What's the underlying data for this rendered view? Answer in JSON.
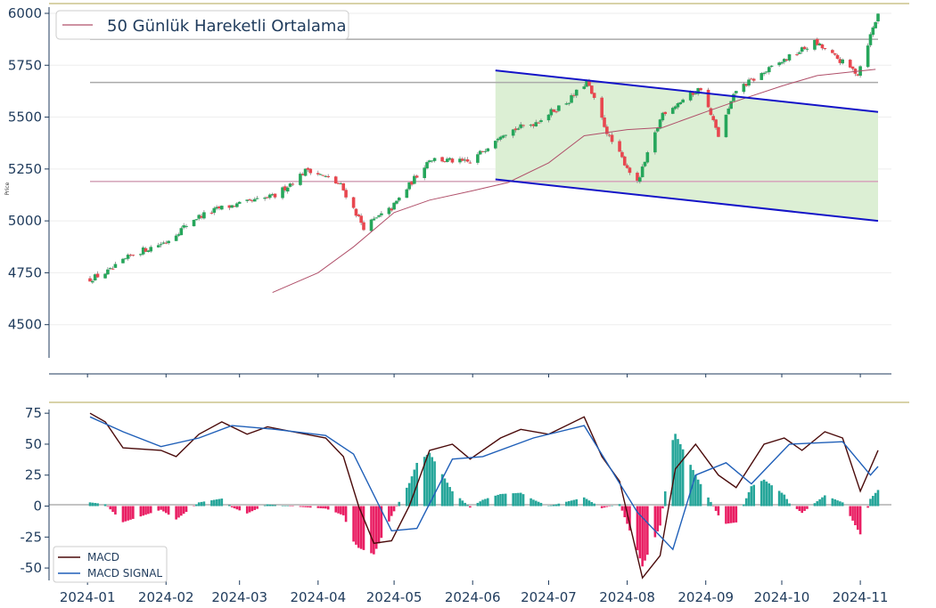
{
  "chart_data": [
    {
      "type": "candlestick",
      "ylabel": "Price",
      "ylim": [
        4340,
        6030
      ],
      "yticks": [
        4500,
        4750,
        5000,
        5250,
        5500,
        5750,
        6000
      ],
      "legend": {
        "placement": "top-left",
        "entries": [
          {
            "label": "50 Günlük Hareketli Ortalama",
            "color": "#b0506a"
          }
        ]
      },
      "up_color": "#26a65b",
      "down_color": "#e8474f",
      "moving_average": {
        "name": "50 Günlük Hareketli Ortalama",
        "color": "#b0506a",
        "points": [
          [
            "2024-03-14",
            4655
          ],
          [
            "2024-04-01",
            4750
          ],
          [
            "2024-04-15",
            4875
          ],
          [
            "2024-05-01",
            5040
          ],
          [
            "2024-05-15",
            5100
          ],
          [
            "2024-06-01",
            5145
          ],
          [
            "2024-06-15",
            5185
          ],
          [
            "2024-07-01",
            5280
          ],
          [
            "2024-07-15",
            5410
          ],
          [
            "2024-08-01",
            5440
          ],
          [
            "2024-08-15",
            5450
          ],
          [
            "2024-09-01",
            5525
          ],
          [
            "2024-09-15",
            5585
          ],
          [
            "2024-10-01",
            5650
          ],
          [
            "2024-10-15",
            5700
          ],
          [
            "2024-11-07",
            5730
          ]
        ]
      },
      "horizontal_levels": [
        {
          "value": 5875,
          "color": "#aaaaaa",
          "from": "2024-01-02",
          "to": "2024-11-08"
        },
        {
          "value": 5667,
          "color": "#aaaaaa",
          "from": "2024-01-02",
          "to": "2024-11-08"
        },
        {
          "value": 5190,
          "color": "#d7a9bd",
          "from": "2024-01-02",
          "to": "2024-11-08"
        }
      ],
      "channel": {
        "color": "#1414c8",
        "fill": "#dcefd4",
        "upper": [
          [
            "2024-06-10",
            5725
          ],
          [
            "2024-11-08",
            5525
          ]
        ],
        "lower": [
          [
            "2024-06-10",
            5200
          ],
          [
            "2024-11-08",
            5000
          ]
        ]
      },
      "anchors": [
        [
          "2024-01-02",
          4720
        ],
        [
          "2024-01-10",
          4760
        ],
        [
          "2024-01-19",
          4840
        ],
        [
          "2024-02-01",
          4900
        ],
        [
          "2024-02-12",
          5010
        ],
        [
          "2024-02-22",
          5060
        ],
        [
          "2024-03-05",
          5090
        ],
        [
          "2024-03-15",
          5120
        ],
        [
          "2024-03-28",
          5250
        ],
        [
          "2024-04-04",
          5210
        ],
        [
          "2024-04-10",
          5170
        ],
        [
          "2024-04-19",
          4970
        ],
        [
          "2024-04-30",
          5060
        ],
        [
          "2024-05-15",
          5300
        ],
        [
          "2024-05-31",
          5280
        ],
        [
          "2024-06-12",
          5420
        ],
        [
          "2024-06-25",
          5470
        ],
        [
          "2024-07-09",
          5580
        ],
        [
          "2024-07-16",
          5670
        ],
        [
          "2024-07-25",
          5400
        ],
        [
          "2024-08-05",
          5180
        ],
        [
          "2024-08-15",
          5520
        ],
        [
          "2024-08-30",
          5640
        ],
        [
          "2024-09-06",
          5410
        ],
        [
          "2024-09-13",
          5630
        ],
        [
          "2024-09-30",
          5760
        ],
        [
          "2024-10-14",
          5860
        ],
        [
          "2024-10-31",
          5710
        ],
        [
          "2024-11-06",
          5930
        ],
        [
          "2024-11-08",
          5995
        ]
      ]
    },
    {
      "type": "macd",
      "ylim": [
        -60,
        78
      ],
      "yticks": [
        -50,
        -25,
        0,
        25,
        50,
        75
      ],
      "xticks": [
        "2024-01",
        "2024-02",
        "2024-03",
        "2024-04",
        "2024-05",
        "2024-06",
        "2024-07",
        "2024-08",
        "2024-09",
        "2024-10",
        "2024-11"
      ],
      "legend": {
        "placement": "bottom-left",
        "entries": [
          {
            "label": "MACD",
            "color": "#4a0a0a"
          },
          {
            "label": "MACD SIGNAL",
            "color": "#1f5fb8"
          }
        ]
      },
      "macd_color": "#4a0a0a",
      "signal_color": "#1f5fb8",
      "hist_pos_color": "#26a69a",
      "hist_neg_color": "#e91e63",
      "macd": [
        [
          "2024-01-02",
          75
        ],
        [
          "2024-01-08",
          68
        ],
        [
          "2024-01-15",
          47
        ],
        [
          "2024-01-30",
          45
        ],
        [
          "2024-02-05",
          40
        ],
        [
          "2024-02-14",
          58
        ],
        [
          "2024-02-23",
          68
        ],
        [
          "2024-03-04",
          58
        ],
        [
          "2024-03-12",
          64
        ],
        [
          "2024-03-22",
          60
        ],
        [
          "2024-04-04",
          55
        ],
        [
          "2024-04-11",
          40
        ],
        [
          "2024-04-17",
          0
        ],
        [
          "2024-04-23",
          -30
        ],
        [
          "2024-04-30",
          -28
        ],
        [
          "2024-05-07",
          0
        ],
        [
          "2024-05-15",
          45
        ],
        [
          "2024-05-24",
          50
        ],
        [
          "2024-05-31",
          38
        ],
        [
          "2024-06-12",
          55
        ],
        [
          "2024-06-20",
          62
        ],
        [
          "2024-07-01",
          58
        ],
        [
          "2024-07-15",
          72
        ],
        [
          "2024-07-22",
          40
        ],
        [
          "2024-07-29",
          20
        ],
        [
          "2024-08-07",
          -58
        ],
        [
          "2024-08-14",
          -40
        ],
        [
          "2024-08-20",
          30
        ],
        [
          "2024-08-28",
          50
        ],
        [
          "2024-09-06",
          25
        ],
        [
          "2024-09-13",
          15
        ],
        [
          "2024-09-24",
          50
        ],
        [
          "2024-10-02",
          55
        ],
        [
          "2024-10-09",
          45
        ],
        [
          "2024-10-18",
          60
        ],
        [
          "2024-10-25",
          55
        ],
        [
          "2024-11-01",
          12
        ],
        [
          "2024-11-08",
          45
        ]
      ],
      "signal": [
        [
          "2024-01-02",
          72
        ],
        [
          "2024-01-15",
          60
        ],
        [
          "2024-01-30",
          48
        ],
        [
          "2024-02-14",
          55
        ],
        [
          "2024-02-27",
          65
        ],
        [
          "2024-03-15",
          62
        ],
        [
          "2024-04-04",
          57
        ],
        [
          "2024-04-15",
          42
        ],
        [
          "2024-04-30",
          -20
        ],
        [
          "2024-05-10",
          -18
        ],
        [
          "2024-05-24",
          38
        ],
        [
          "2024-06-05",
          40
        ],
        [
          "2024-06-25",
          55
        ],
        [
          "2024-07-15",
          65
        ],
        [
          "2024-08-05",
          -5
        ],
        [
          "2024-08-19",
          -35
        ],
        [
          "2024-08-28",
          25
        ],
        [
          "2024-09-09",
          35
        ],
        [
          "2024-09-19",
          18
        ],
        [
          "2024-10-04",
          50
        ],
        [
          "2024-10-25",
          52
        ],
        [
          "2024-11-05",
          25
        ],
        [
          "2024-11-08",
          32
        ]
      ]
    }
  ]
}
